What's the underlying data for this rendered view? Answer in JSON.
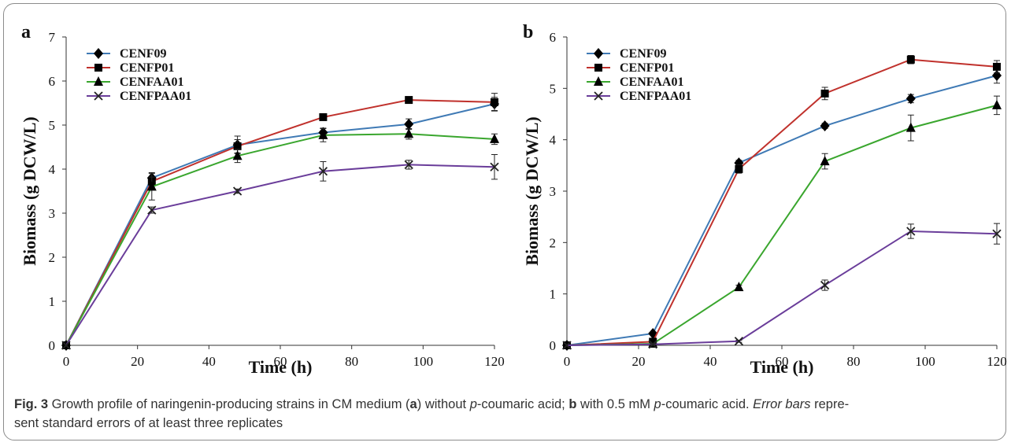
{
  "chart_data": [
    {
      "type": "line",
      "panel_label": "a",
      "xlabel": "Time (h)",
      "ylabel": "Biomass (g DCW/L)",
      "xlim": [
        0,
        120
      ],
      "ylim": [
        0,
        7
      ],
      "xticks": [
        0,
        20,
        40,
        60,
        80,
        100,
        120
      ],
      "yticks": [
        0,
        1,
        2,
        3,
        4,
        5,
        6,
        7
      ],
      "legend_position": "top-left",
      "x": [
        0,
        24,
        48,
        72,
        96,
        120
      ],
      "series": [
        {
          "name": "CENF09",
          "color": "#3f7ab5",
          "marker": "diamond",
          "values": [
            0,
            3.8,
            4.55,
            4.83,
            5.02,
            5.48
          ],
          "errors": [
            0,
            0.12,
            0.2,
            0.1,
            0.12,
            0.15
          ]
        },
        {
          "name": "CENFP01",
          "color": "#c0312c",
          "marker": "square",
          "values": [
            0,
            3.72,
            4.52,
            5.18,
            5.57,
            5.52
          ],
          "errors": [
            0,
            0.1,
            0.15,
            0.06,
            0.06,
            0.2
          ]
        },
        {
          "name": "CENFAA01",
          "color": "#3aa62e",
          "marker": "triangle",
          "values": [
            0,
            3.6,
            4.3,
            4.77,
            4.8,
            4.68
          ],
          "errors": [
            0,
            0.3,
            0.15,
            0.15,
            0.12,
            0.12
          ]
        },
        {
          "name": "CENFPAA01",
          "color": "#6a3d9a",
          "marker": "x",
          "values": [
            0,
            3.07,
            3.5,
            3.95,
            4.1,
            4.05
          ],
          "errors": [
            0,
            0.07,
            0.05,
            0.22,
            0.1,
            0.28
          ]
        }
      ]
    },
    {
      "type": "line",
      "panel_label": "b",
      "xlabel": "Time (h)",
      "ylabel": "Biomass (g DCW/L)",
      "xlim": [
        0,
        120
      ],
      "ylim": [
        0,
        6
      ],
      "xticks": [
        0,
        20,
        40,
        60,
        80,
        100,
        120
      ],
      "yticks": [
        0,
        1,
        2,
        3,
        4,
        5,
        6
      ],
      "legend_position": "top-left",
      "x": [
        0,
        24,
        48,
        72,
        96,
        120
      ],
      "series": [
        {
          "name": "CENF09",
          "color": "#3f7ab5",
          "marker": "diamond",
          "values": [
            0,
            0.23,
            3.55,
            4.27,
            4.8,
            5.25
          ],
          "errors": [
            0,
            0.02,
            0.05,
            0.05,
            0.08,
            0.15
          ]
        },
        {
          "name": "CENFP01",
          "color": "#c0312c",
          "marker": "square",
          "values": [
            0,
            0.07,
            3.43,
            4.9,
            5.56,
            5.42
          ],
          "errors": [
            0,
            0.02,
            0.08,
            0.12,
            0.08,
            0.12
          ]
        },
        {
          "name": "CENFAA01",
          "color": "#3aa62e",
          "marker": "triangle",
          "values": [
            0,
            0.03,
            1.13,
            3.58,
            4.23,
            4.67
          ],
          "errors": [
            0,
            0.02,
            0.04,
            0.15,
            0.25,
            0.18
          ]
        },
        {
          "name": "CENFPAA01",
          "color": "#6a3d9a",
          "marker": "x",
          "values": [
            0,
            0.02,
            0.08,
            1.17,
            2.22,
            2.17
          ],
          "errors": [
            0,
            0.01,
            0.02,
            0.1,
            0.14,
            0.2
          ]
        }
      ]
    }
  ],
  "caption": {
    "fig_label": "Fig. 3",
    "part1": "  Growth profile of naringenin-producing strains in CM medium (",
    "a": "a",
    "part2": ") without ",
    "p1": "p",
    "part3": "-coumaric acid; ",
    "b": "b",
    "part4": " with 0.5 mM ",
    "p2": "p",
    "part5": "-coumaric acid. ",
    "error_bars": "Error bars",
    "part6": " repre-",
    "line2": "sent standard errors of at least three replicates"
  }
}
